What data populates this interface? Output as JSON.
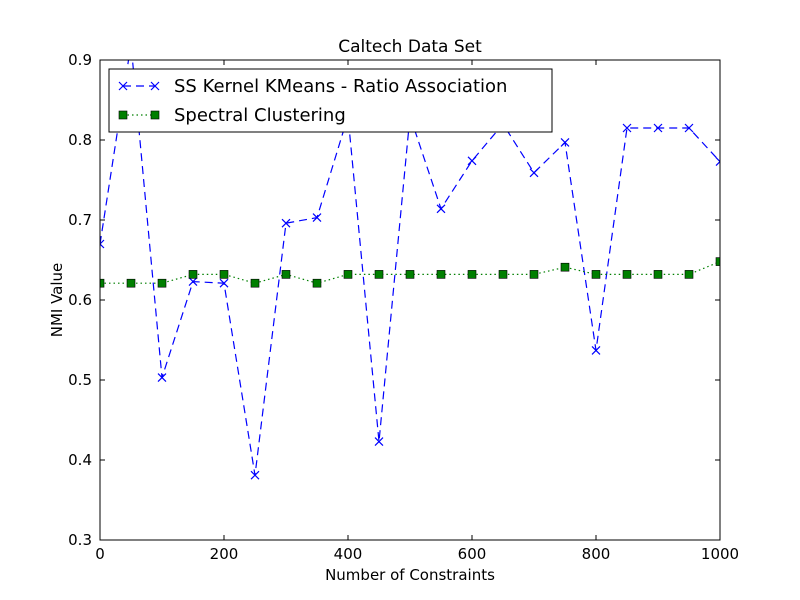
{
  "chart_data": {
    "type": "line",
    "title": "Caltech Data Set",
    "xlabel": "Number of Constraints",
    "ylabel": "NMI Value",
    "xlim": [
      0,
      1000
    ],
    "ylim": [
      0.3,
      0.9
    ],
    "x_ticks": [
      "0",
      "200",
      "400",
      "600",
      "800",
      "1000"
    ],
    "y_ticks": [
      "0.3",
      "0.4",
      "0.5",
      "0.6",
      "0.7",
      "0.8",
      "0.9"
    ],
    "x_tick_values": [
      0,
      200,
      400,
      600,
      800,
      1000
    ],
    "y_tick_values": [
      0.3,
      0.4,
      0.5,
      0.6,
      0.7,
      0.8,
      0.9
    ],
    "grid": false,
    "legend_position": "top-left",
    "x": [
      0,
      50,
      100,
      150,
      200,
      250,
      300,
      350,
      400,
      450,
      500,
      550,
      600,
      650,
      700,
      750,
      800,
      850,
      900,
      950,
      1000
    ],
    "series": [
      {
        "name": "SS Kernel KMeans - Ratio Association",
        "color": "#0000ff",
        "line_style": "dashed",
        "marker": "x",
        "values": [
          0.67,
          0.92,
          0.503,
          0.623,
          0.621,
          0.381,
          0.696,
          0.703,
          0.83,
          0.423,
          0.83,
          0.714,
          0.774,
          0.82,
          0.759,
          0.797,
          0.537,
          0.815,
          0.815,
          0.815,
          0.773
        ]
      },
      {
        "name": "Spectral Clustering",
        "color": "#007f00",
        "line_style": "dotted",
        "marker": "square",
        "values": [
          0.621,
          0.621,
          0.621,
          0.632,
          0.632,
          0.621,
          0.632,
          0.621,
          0.632,
          0.632,
          0.632,
          0.632,
          0.632,
          0.632,
          0.632,
          0.641,
          0.632,
          0.632,
          0.632,
          0.632,
          0.648
        ]
      }
    ]
  }
}
